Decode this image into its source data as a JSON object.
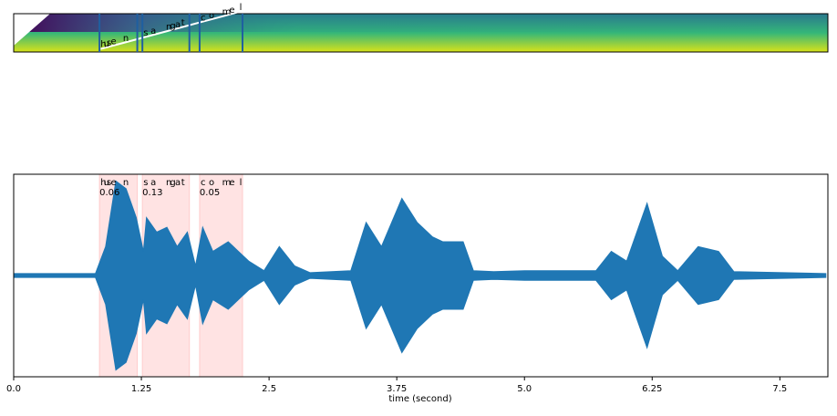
{
  "chart_data": {
    "type": "waveform-alignment",
    "xlabel": "time (second)",
    "xlim": [
      0,
      7.97
    ],
    "ylim": [
      -1.05,
      1.05
    ],
    "xticks": [
      {
        "value": 0,
        "label": "0.0"
      },
      1.25,
      2.5,
      3.75,
      {
        "value": 5,
        "label": "5.0"
      },
      6.25,
      7.5
    ],
    "color": "#1f77b4",
    "segment_color": "#ffcccc",
    "segments": [
      {
        "start": 0.84,
        "end": 1.21,
        "score": "0.06",
        "chars": [
          "h",
          "u",
          "s",
          "e",
          "n"
        ],
        "char_times": [
          0.85,
          0.88,
          0.91,
          0.95,
          1.07
        ]
      },
      {
        "start": 1.26,
        "end": 1.72,
        "score": "0.13",
        "chars": [
          "s",
          "a",
          "n",
          "g",
          "a",
          "t"
        ],
        "char_times": [
          1.27,
          1.34,
          1.49,
          1.53,
          1.58,
          1.64
        ]
      },
      {
        "start": 1.82,
        "end": 2.24,
        "score": "0.05",
        "chars": [
          "c",
          "o",
          "m",
          "e",
          "l"
        ],
        "char_times": [
          1.83,
          1.91,
          2.04,
          2.11,
          2.21
        ]
      }
    ],
    "envelope": {
      "x": [
        0,
        0.8,
        0.9,
        1.0,
        1.1,
        1.2,
        1.27,
        1.3,
        1.4,
        1.5,
        1.6,
        1.7,
        1.78,
        1.85,
        1.95,
        2.1,
        2.2,
        2.3,
        2.45,
        2.6,
        2.75,
        2.9,
        3.3,
        3.45,
        3.6,
        3.8,
        3.95,
        4.1,
        4.2,
        4.4,
        4.5,
        4.7,
        5.0,
        5.5,
        5.7,
        5.85,
        6.0,
        6.2,
        6.35,
        6.5,
        6.7,
        6.9,
        7.05,
        7.95
      ],
      "values": [
        0.02,
        0.02,
        0.3,
        0.98,
        0.9,
        0.6,
        0.25,
        0.6,
        0.45,
        0.5,
        0.3,
        0.45,
        0.1,
        0.5,
        0.25,
        0.35,
        0.25,
        0.15,
        0.05,
        0.3,
        0.1,
        0.03,
        0.05,
        0.55,
        0.3,
        0.8,
        0.55,
        0.4,
        0.35,
        0.35,
        0.05,
        0.04,
        0.05,
        0.05,
        0.05,
        0.25,
        0.15,
        0.75,
        0.2,
        0.05,
        0.3,
        0.25,
        0.04,
        0.02
      ]
    }
  }
}
